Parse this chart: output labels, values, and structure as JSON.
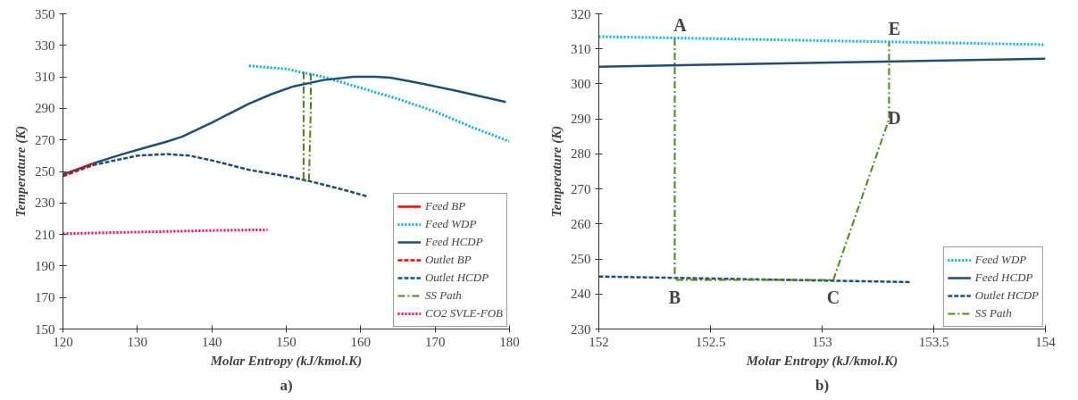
{
  "chart_data": [
    {
      "type": "line",
      "xlabel": "Molar Entropy (kJ/kmol.K)",
      "ylabel": "Temperature (K)",
      "xlim": [
        120,
        180
      ],
      "ylim": [
        150,
        350
      ],
      "xticks": [
        120,
        130,
        140,
        150,
        160,
        170,
        180
      ],
      "yticks": [
        150,
        170,
        190,
        210,
        230,
        250,
        270,
        290,
        310,
        330,
        350
      ],
      "grid": false,
      "legend": "bottom right",
      "annotations": [
        "a)"
      ],
      "series": [
        {
          "name": "Feed BP",
          "color": "#ff0000",
          "line_style": "solid",
          "x": [
            120,
            122,
            124
          ],
          "values": [
            248,
            251.5,
            255
          ]
        },
        {
          "name": "Feed WDP",
          "color": "#00b0f0",
          "line_style": "dotted",
          "x": [
            145,
            150,
            152,
            155,
            160,
            165,
            170,
            175,
            180
          ],
          "values": [
            317,
            315,
            313,
            310,
            303,
            296,
            288,
            278,
            269
          ]
        },
        {
          "name": "Feed HCDP",
          "color": "#1f4e79",
          "line_style": "solid",
          "x": [
            124,
            126,
            128,
            131,
            134,
            136,
            140,
            145,
            148,
            151,
            155,
            159,
            162,
            164,
            168,
            173,
            179.5
          ],
          "values": [
            255,
            258,
            261,
            265,
            269,
            272,
            281,
            293,
            299,
            304,
            308,
            310,
            310,
            309.5,
            306,
            301,
            294
          ]
        },
        {
          "name": "Outlet BP",
          "color": "#ff0000",
          "line_style": "dashed",
          "x": [
            120,
            122,
            124
          ],
          "values": [
            247,
            250.5,
            254
          ]
        },
        {
          "name": "Outlet HCDP",
          "color": "#1f4e79",
          "line_style": "dashed",
          "x": [
            120,
            124,
            127,
            130,
            134,
            137,
            140,
            145,
            150,
            153,
            158,
            161
          ],
          "values": [
            248,
            254,
            257,
            260,
            261,
            260,
            257,
            251,
            247,
            244,
            238,
            234
          ]
        },
        {
          "name": "SS Path",
          "color": "#4f8a10",
          "line_style": "dashdot",
          "x": [
            152.34,
            152.34,
            153.05,
            153.3,
            153.3
          ],
          "values": [
            313,
            244,
            244,
            290,
            312
          ]
        },
        {
          "name": "CO2 SVLE-FOB",
          "color": "#ff0066",
          "line_style": "dotted",
          "x": [
            120,
            130,
            140,
            147.5
          ],
          "values": [
            210.5,
            211.5,
            212.5,
            213
          ]
        }
      ]
    },
    {
      "type": "line",
      "xlabel": "Molar Entropy (kJ/kmol.K)",
      "ylabel": "Temperature (K)",
      "xlim": [
        152,
        154
      ],
      "ylim": [
        230,
        320
      ],
      "xticks": [
        152,
        152.5,
        153,
        153.5,
        154
      ],
      "yticks": [
        230,
        240,
        250,
        260,
        270,
        280,
        290,
        300,
        310,
        320
      ],
      "grid": false,
      "legend": "bottom right",
      "annotations": [
        {
          "text": "A",
          "x": 152.34,
          "y": 313
        },
        {
          "text": "B",
          "x": 152.34,
          "y": 244
        },
        {
          "text": "C",
          "x": 153.05,
          "y": 244
        },
        {
          "text": "D",
          "x": 153.3,
          "y": 290
        },
        {
          "text": "E",
          "x": 153.3,
          "y": 312
        },
        "b)"
      ],
      "series": [
        {
          "name": "Feed WDP",
          "color": "#00b0f0",
          "line_style": "dotted",
          "x": [
            152,
            154
          ],
          "values": [
            313.5,
            311.2
          ]
        },
        {
          "name": "Feed HCDP",
          "color": "#1f4e79",
          "line_style": "solid",
          "x": [
            152,
            154
          ],
          "values": [
            304.9,
            307.2
          ]
        },
        {
          "name": "Outlet HCDP",
          "color": "#1f4e79",
          "line_style": "dashed",
          "x": [
            152,
            153.4
          ],
          "values": [
            245,
            243.4
          ]
        },
        {
          "name": "SS Path",
          "color": "#4f8a10",
          "line_style": "dashdot",
          "x": [
            152.34,
            152.34,
            153.05,
            153.3,
            153.3
          ],
          "values": [
            313,
            244,
            244,
            290,
            312
          ]
        }
      ]
    }
  ]
}
